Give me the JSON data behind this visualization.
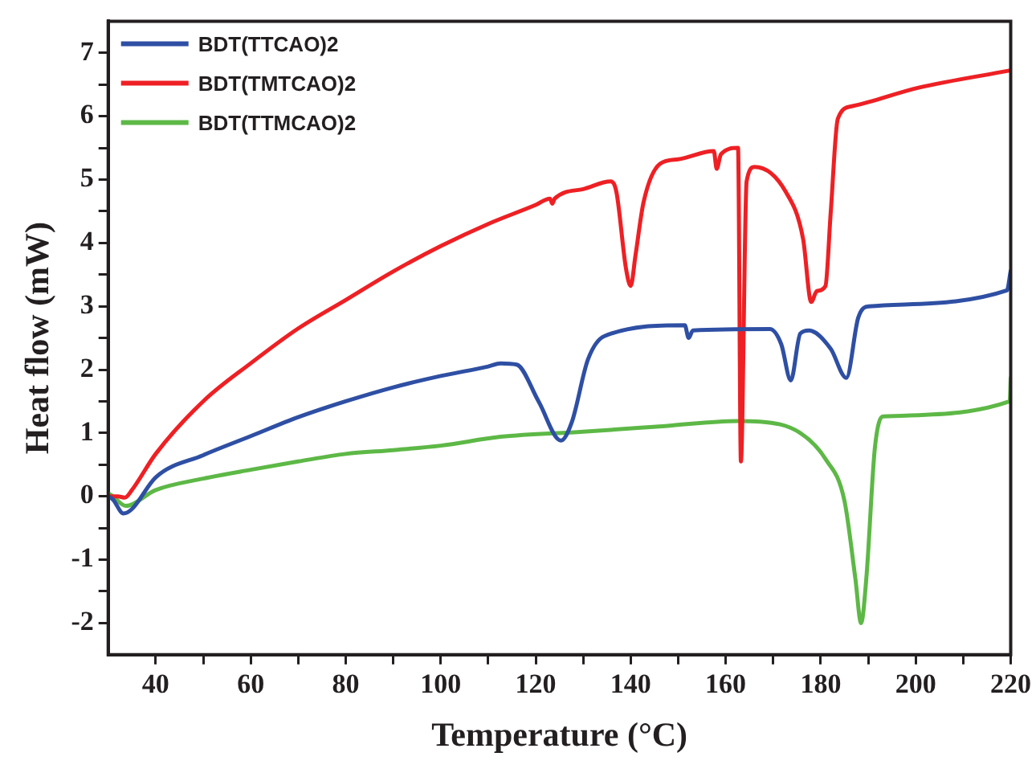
{
  "chart_data": {
    "type": "line",
    "xlabel": "Temperature (°C)",
    "ylabel": "Heat flow (mW)",
    "xlim": [
      30,
      220
    ],
    "ylim": [
      -2.5,
      7.5
    ],
    "xticks": [
      40,
      {
        "value": 50,
        "label": null
      },
      60,
      {
        "value": 70,
        "label": null
      },
      80,
      {
        "value": 90,
        "label": null
      },
      100,
      {
        "value": 110,
        "label": null
      },
      120,
      {
        "value": 130,
        "label": null
      },
      140,
      {
        "value": 150,
        "label": null
      },
      160,
      {
        "value": 170,
        "label": null
      },
      180,
      {
        "value": 190,
        "label": null
      },
      200,
      {
        "value": 210,
        "label": null
      },
      220
    ],
    "yticks": [
      -2,
      {
        "value": -1.5,
        "label": null
      },
      -1,
      {
        "value": -0.5,
        "label": null
      },
      0,
      {
        "value": 0.5,
        "label": null
      },
      1,
      {
        "value": 1.5,
        "label": null
      },
      2,
      {
        "value": 2.5,
        "label": null
      },
      3,
      {
        "value": 3.5,
        "label": null
      },
      4,
      {
        "value": 4.5,
        "label": null
      },
      5,
      {
        "value": 5.5,
        "label": null
      },
      6,
      {
        "value": 6.5,
        "label": null
      },
      7
    ],
    "grid": false,
    "legend": "top left",
    "marker": "none",
    "line_style": "solid",
    "series": [
      {
        "name": "BDT(TTCAO)2",
        "color": "#2e4fa3",
        "x": [
          30,
          31,
          33.2,
          35,
          40,
          50,
          60,
          70,
          80,
          90,
          100,
          110,
          112.6,
          116,
          120.6,
          125.3,
          127.6,
          131,
          134.5,
          151.4,
          152.2,
          153.1,
          169.3,
          171.7,
          173.7,
          175.7,
          177.5,
          182.1,
          185.4,
          187.9,
          190.2,
          219.2,
          220
        ],
        "values": [
          0,
          -0.05,
          -0.27,
          -0.2,
          0.3,
          0.65,
          0.95,
          1.25,
          1.5,
          1.72,
          1.9,
          2.05,
          2.1,
          2.08,
          1.5,
          0.88,
          1.17,
          2.16,
          2.53,
          2.7,
          2.5,
          2.62,
          2.64,
          2.4,
          1.83,
          2.57,
          2.62,
          2.33,
          1.87,
          2.82,
          3.0,
          3.25,
          3.56
        ]
      },
      {
        "name": "BDT(TMTCAO)2",
        "color": "#ee2024",
        "x": [
          30,
          32,
          33.5,
          35,
          40,
          50,
          60,
          70,
          80,
          90,
          100,
          110,
          120,
          123,
          123.5,
          124,
          130,
          135.8,
          137,
          139,
          140,
          141,
          142.7,
          146.2,
          150,
          157.5,
          158.1,
          159,
          162.6,
          163.2,
          164.4,
          166.1,
          172.7,
          176.3,
          178,
          179.2,
          181,
          182.1,
          183.6,
          186.7,
          200.6,
          219.7
        ],
        "values": [
          0,
          0,
          -0.02,
          0.1,
          0.67,
          1.5,
          2.1,
          2.65,
          3.1,
          3.55,
          3.95,
          4.3,
          4.6,
          4.7,
          4.62,
          4.7,
          4.85,
          4.97,
          4.8,
          3.6,
          3.32,
          3.8,
          4.64,
          5.25,
          5.32,
          5.45,
          5.17,
          5.4,
          5.5,
          0.55,
          4.97,
          5.2,
          4.8,
          4.06,
          3.07,
          3.24,
          3.32,
          4.47,
          5.96,
          6.16,
          6.45,
          6.72
        ]
      },
      {
        "name": "BDT(TTMCAO)2",
        "color": "#5db846",
        "x": [
          30,
          31,
          33.7,
          40,
          50,
          60,
          70,
          80,
          90,
          100,
          112.6,
          130,
          147.3,
          162.4,
          167.2,
          175.7,
          181,
          185,
          187.3,
          188.5,
          189.6,
          191.4,
          193.1,
          219.8,
          220
        ],
        "values": [
          0.05,
          0,
          -0.15,
          0.1,
          0.28,
          0.42,
          0.55,
          0.67,
          0.73,
          0.8,
          0.94,
          1.02,
          1.11,
          1.19,
          1.18,
          1.0,
          0.59,
          -0.07,
          -1.3,
          -2.0,
          -1.3,
          0.76,
          1.26,
          1.5,
          1.87
        ]
      }
    ]
  }
}
